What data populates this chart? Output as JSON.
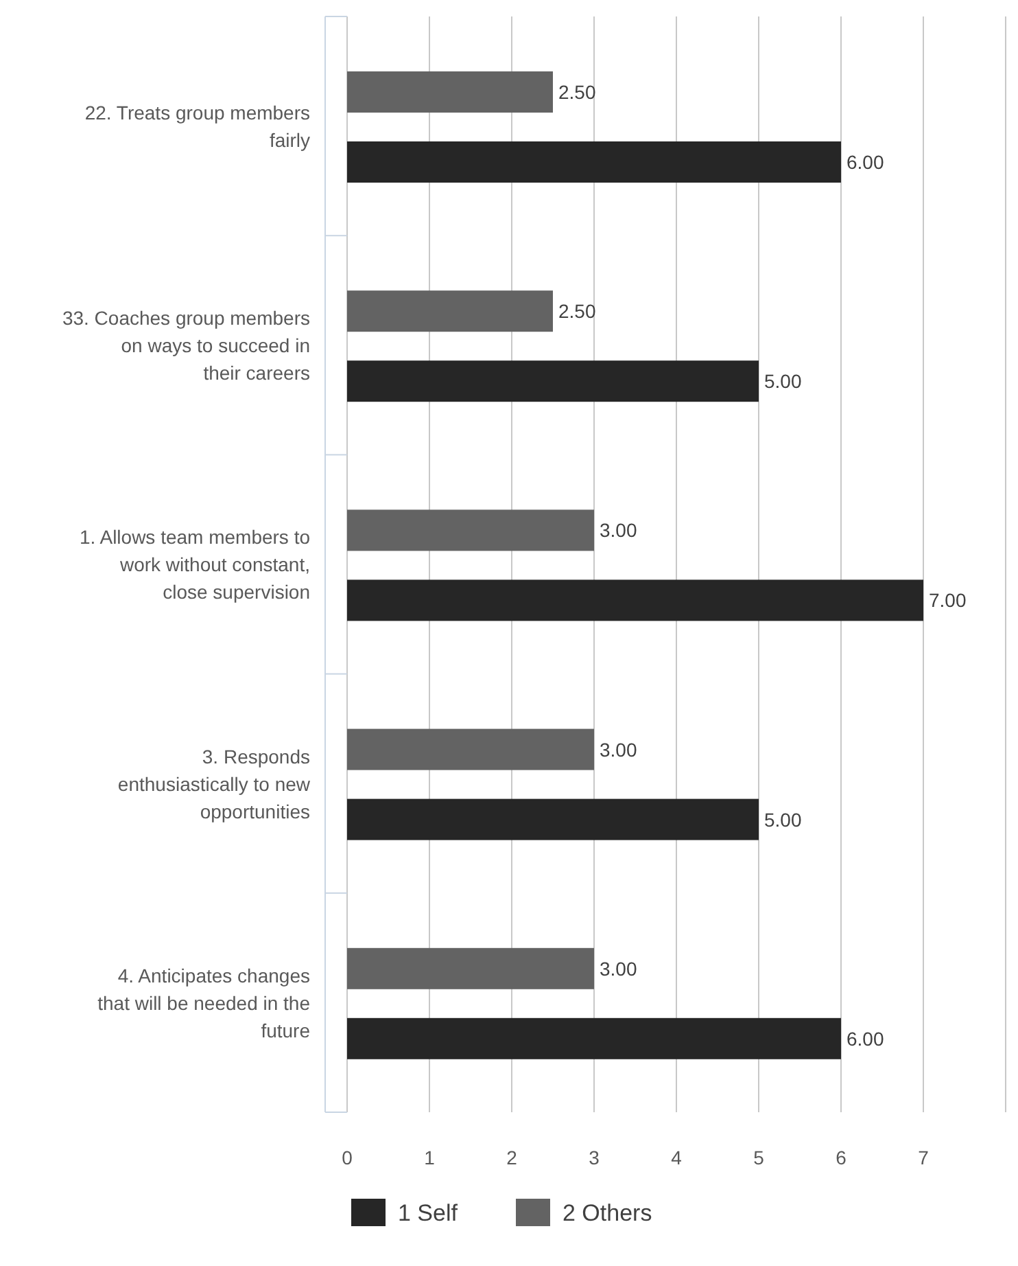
{
  "chart_data": {
    "type": "bar",
    "orientation": "horizontal",
    "categories": [
      "22. Treats group members fairly",
      "33. Coaches group members on ways to succeed in their careers",
      "1. Allows team members to work without constant, close supervision",
      "3. Responds enthusiastically to new opportunities",
      "4. Anticipates changes that will be needed in the future"
    ],
    "series": [
      {
        "name": "2 Others",
        "color": "#636363",
        "values": [
          2.5,
          2.5,
          3,
          3,
          3
        ]
      },
      {
        "name": "1 Self",
        "color": "#262626",
        "values": [
          6,
          5,
          7,
          5,
          6
        ]
      }
    ],
    "value_labels": [
      [
        "2.50",
        "2.50",
        "3.00",
        "3.00",
        "3.00"
      ],
      [
        "6.00",
        "5.00",
        "7.00",
        "5.00",
        "6.00"
      ]
    ],
    "xlim": [
      0,
      8
    ],
    "xticks": [
      0,
      1,
      2,
      3,
      4,
      5,
      6,
      7,
      {
        "value": 8,
        "label": null
      }
    ],
    "grid": "x",
    "legend": "bottom"
  }
}
